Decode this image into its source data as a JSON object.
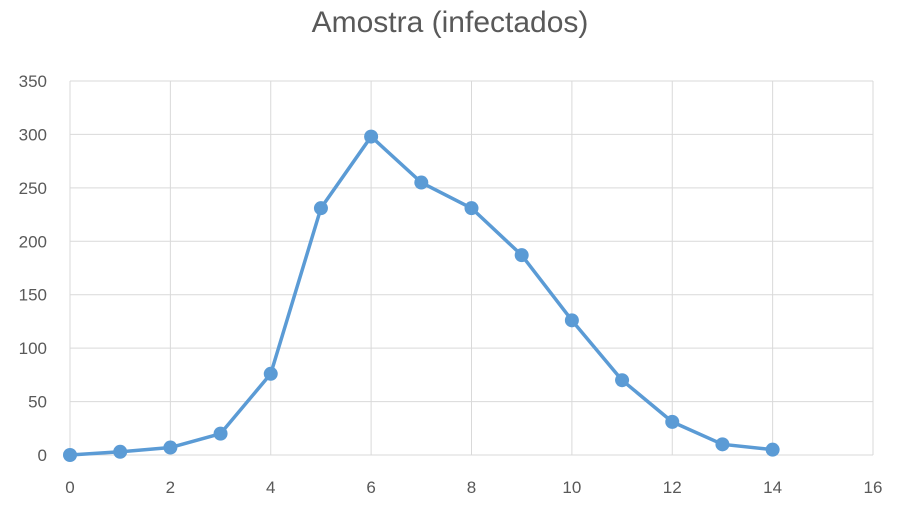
{
  "chart_data": {
    "type": "scatter",
    "title": "Amostra (infectados)",
    "xlabel": "",
    "ylabel": "",
    "xlim": [
      0,
      16
    ],
    "ylim": [
      0,
      350
    ],
    "xticks": [
      0,
      2,
      4,
      6,
      8,
      10,
      12,
      14,
      16
    ],
    "yticks": [
      0,
      50,
      100,
      150,
      200,
      250,
      300,
      350
    ],
    "grid": true,
    "legend": "none",
    "series": [
      {
        "color": "#5b9bd5",
        "marker": "circle",
        "line": "straight",
        "x": [
          0,
          1,
          2,
          3,
          4,
          5,
          6,
          7,
          8,
          9,
          10,
          11,
          12,
          13,
          14
        ],
        "y": [
          0,
          3,
          7,
          20,
          76,
          231,
          298,
          255,
          231,
          187,
          126,
          70,
          31,
          10,
          5
        ]
      }
    ]
  }
}
